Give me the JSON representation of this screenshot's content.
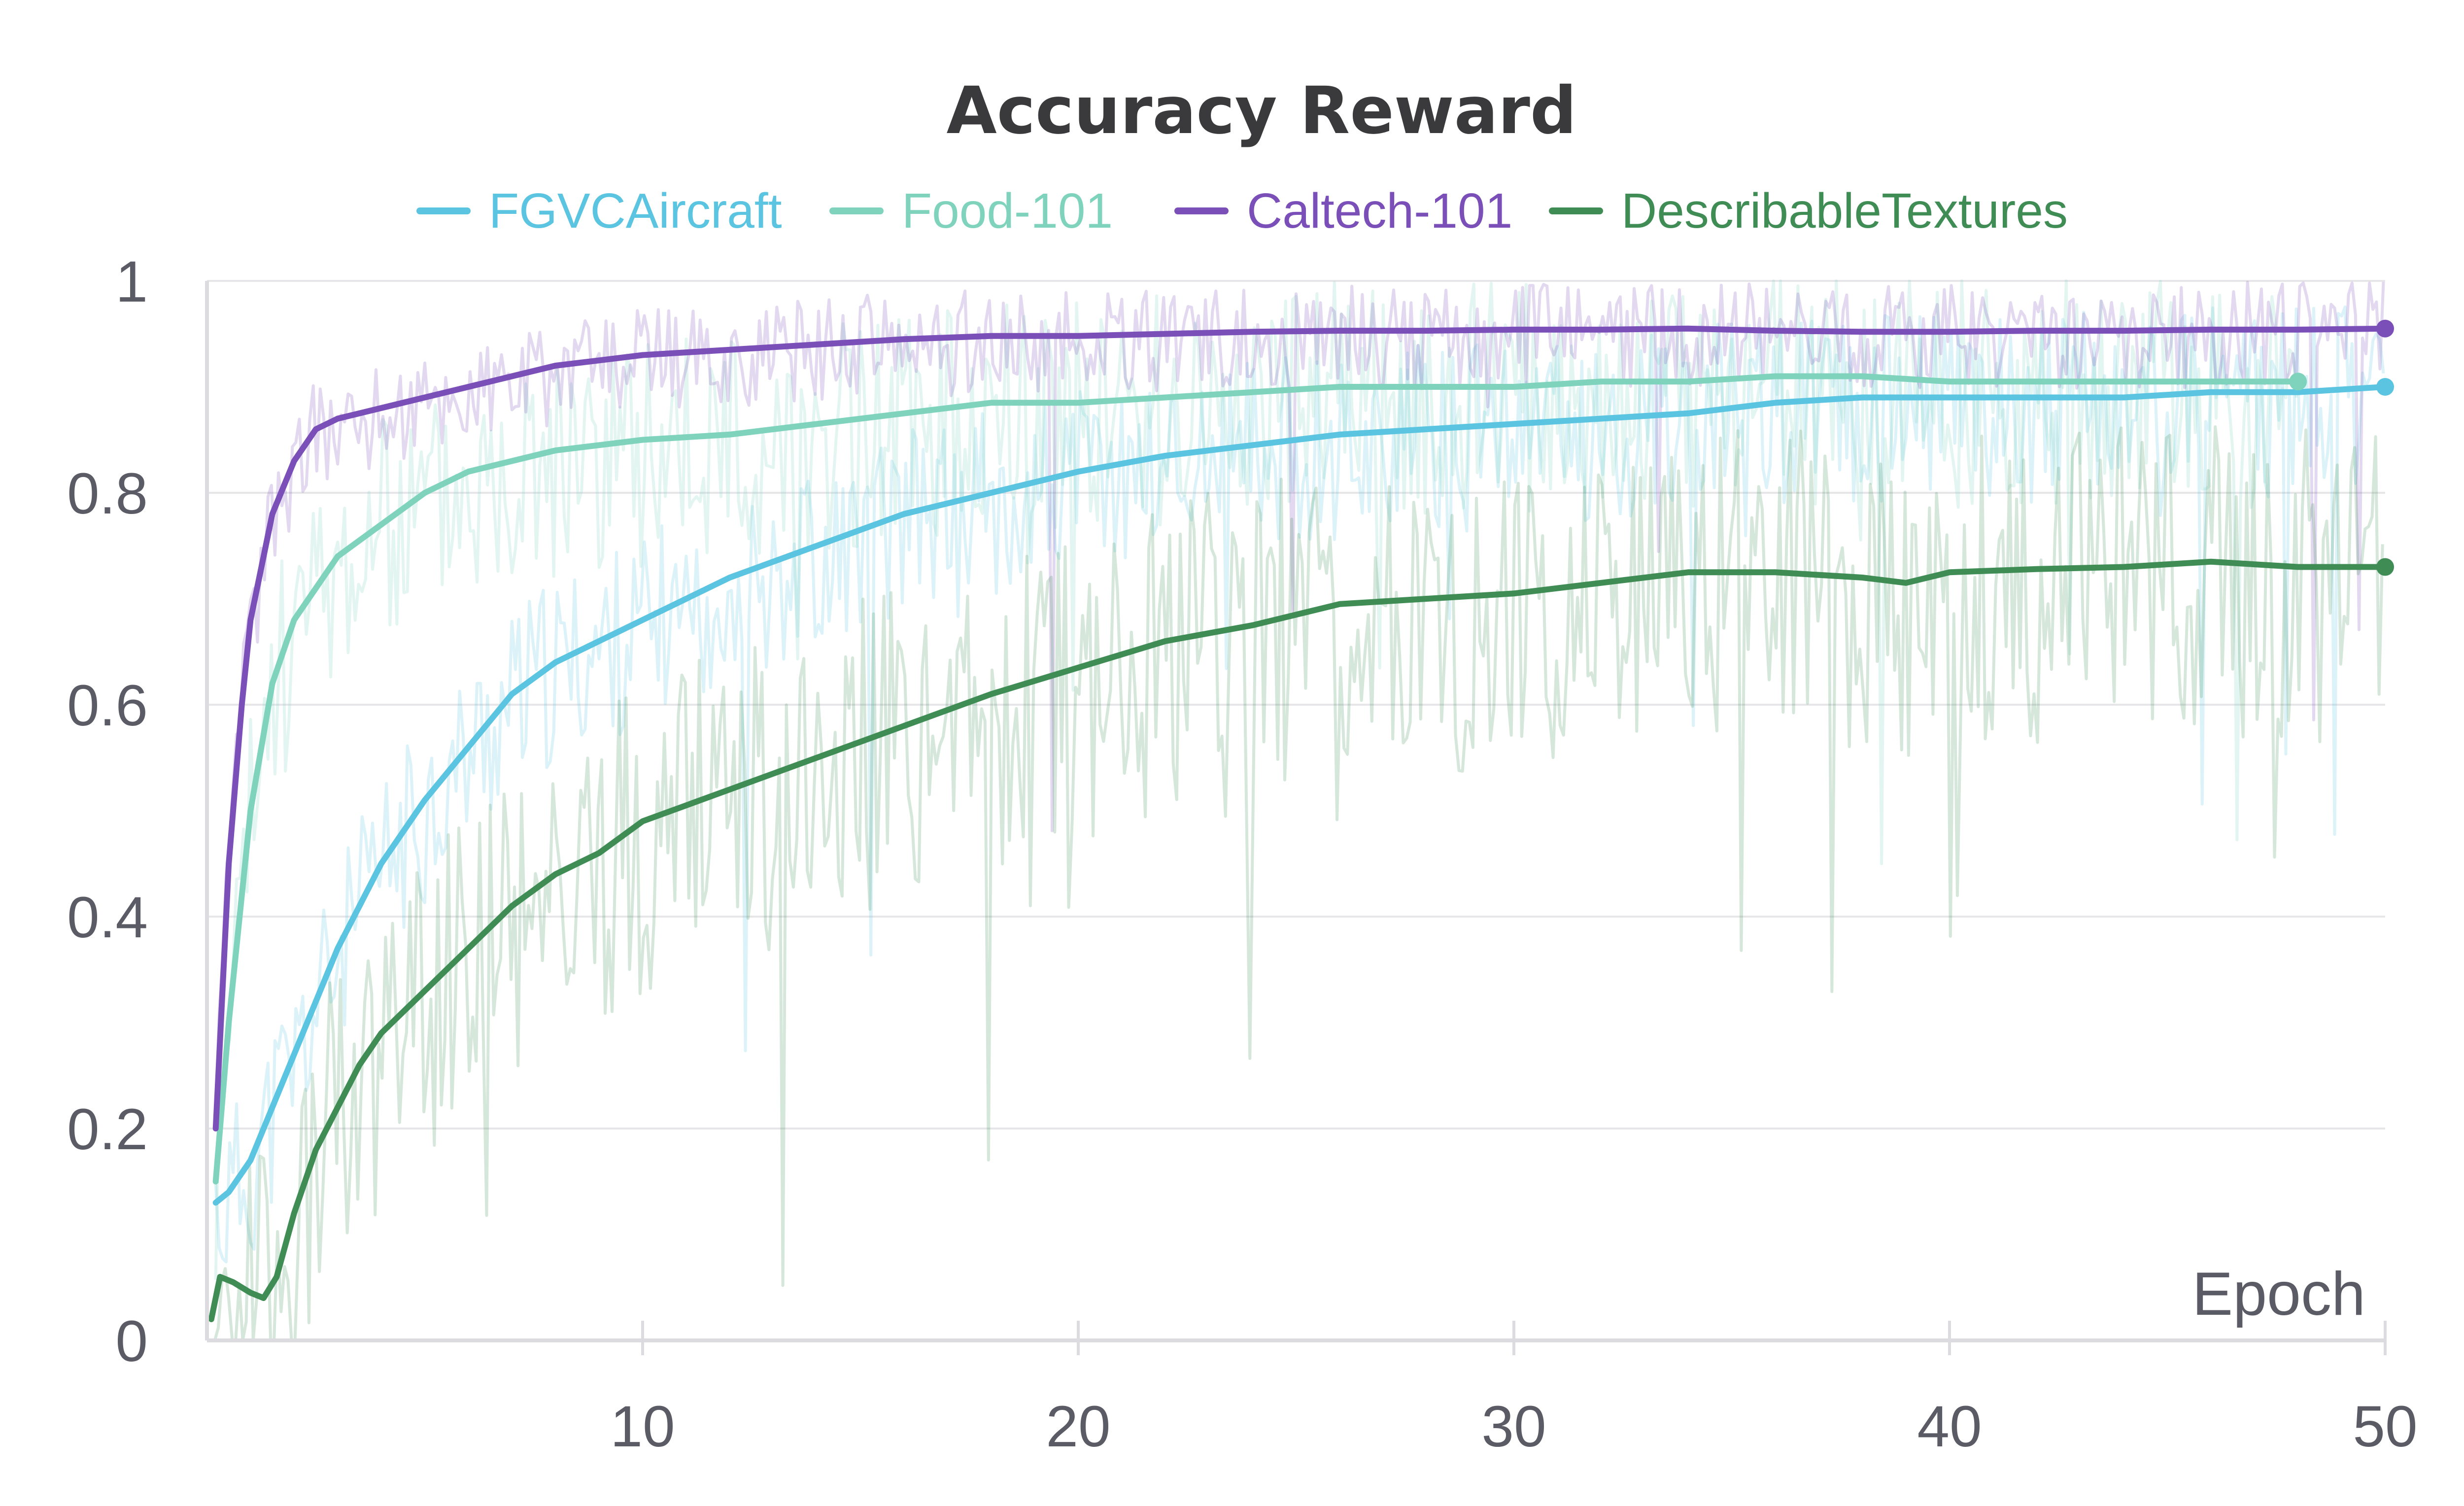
{
  "chart_data": {
    "type": "line",
    "title": "Accuracy Reward",
    "xlabel": "Epoch",
    "ylabel": "",
    "xlim": [
      0,
      50
    ],
    "ylim": [
      0,
      1
    ],
    "x_ticks": [
      10,
      20,
      30,
      40,
      50
    ],
    "y_ticks": [
      0,
      0.2,
      0.4,
      0.6,
      0.8,
      1
    ],
    "y_tick_labels": [
      "0",
      "0.2",
      "0.4",
      "0.6",
      "0.8",
      "1"
    ],
    "grid": "horizontal",
    "legend_position": "top",
    "raw_traces_shown": true,
    "series": [
      {
        "name": "FGVCAircraft",
        "color": "#5bc4e0",
        "x": [
          0.2,
          0.5,
          1,
          1.5,
          2,
          3,
          4,
          5,
          6,
          7,
          8,
          9,
          10,
          12,
          14,
          16,
          18,
          20,
          22,
          24,
          26,
          28,
          30,
          32,
          34,
          36,
          38,
          40,
          42,
          44,
          46,
          48,
          50
        ],
        "values": [
          0.13,
          0.14,
          0.17,
          0.22,
          0.27,
          0.37,
          0.45,
          0.51,
          0.56,
          0.61,
          0.64,
          0.66,
          0.68,
          0.72,
          0.75,
          0.78,
          0.8,
          0.82,
          0.835,
          0.845,
          0.855,
          0.86,
          0.865,
          0.87,
          0.875,
          0.885,
          0.89,
          0.89,
          0.89,
          0.89,
          0.895,
          0.895,
          0.9
        ]
      },
      {
        "name": "Food-101",
        "color": "#7fd3bd",
        "x": [
          0.2,
          0.5,
          1,
          1.5,
          2,
          3,
          4,
          5,
          6,
          7,
          8,
          9,
          10,
          12,
          14,
          16,
          18,
          20,
          22,
          24,
          26,
          28,
          30,
          32,
          34,
          36,
          38,
          40,
          42,
          44,
          46,
          48
        ],
        "values": [
          0.15,
          0.3,
          0.5,
          0.62,
          0.68,
          0.74,
          0.77,
          0.8,
          0.82,
          0.83,
          0.84,
          0.845,
          0.85,
          0.855,
          0.865,
          0.875,
          0.885,
          0.885,
          0.89,
          0.895,
          0.9,
          0.9,
          0.9,
          0.905,
          0.905,
          0.91,
          0.91,
          0.905,
          0.905,
          0.905,
          0.905,
          0.905
        ]
      },
      {
        "name": "Caltech-101",
        "color": "#7b4fb8",
        "x": [
          0.2,
          0.5,
          0.8,
          1,
          1.5,
          2,
          2.5,
          3,
          4,
          5,
          6,
          7,
          8,
          9,
          10,
          12,
          14,
          16,
          18,
          20,
          22,
          24,
          26,
          28,
          30,
          32,
          34,
          36,
          38,
          40,
          42,
          44,
          46,
          48,
          50
        ],
        "values": [
          0.2,
          0.45,
          0.6,
          0.68,
          0.78,
          0.83,
          0.86,
          0.87,
          0.88,
          0.89,
          0.9,
          0.91,
          0.92,
          0.925,
          0.93,
          0.935,
          0.94,
          0.945,
          0.948,
          0.948,
          0.95,
          0.952,
          0.953,
          0.953,
          0.954,
          0.954,
          0.955,
          0.953,
          0.952,
          0.952,
          0.953,
          0.953,
          0.954,
          0.954,
          0.955
        ]
      },
      {
        "name": "DescribableTextures",
        "color": "#3f8c55",
        "x": [
          0.1,
          0.3,
          0.6,
          1,
          1.3,
          1.6,
          2,
          2.5,
          3,
          3.5,
          4,
          5,
          6,
          7,
          8,
          9,
          10,
          12,
          14,
          16,
          18,
          20,
          22,
          24,
          26,
          28,
          30,
          32,
          34,
          36,
          38,
          39,
          40,
          42,
          44,
          46,
          48,
          50
        ],
        "values": [
          0.02,
          0.06,
          0.055,
          0.045,
          0.04,
          0.06,
          0.12,
          0.18,
          0.22,
          0.26,
          0.29,
          0.33,
          0.37,
          0.41,
          0.44,
          0.46,
          0.49,
          0.52,
          0.55,
          0.58,
          0.61,
          0.635,
          0.66,
          0.675,
          0.695,
          0.7,
          0.705,
          0.715,
          0.725,
          0.725,
          0.72,
          0.715,
          0.725,
          0.728,
          0.73,
          0.735,
          0.73,
          0.73
        ]
      }
    ]
  }
}
